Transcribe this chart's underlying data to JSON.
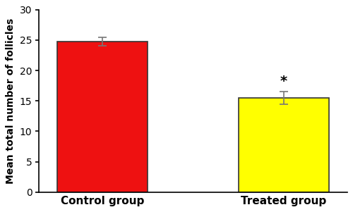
{
  "categories": [
    "Control group",
    "Treated group"
  ],
  "values": [
    24.8,
    15.5
  ],
  "errors": [
    0.7,
    1.1
  ],
  "bar_colors": [
    "#ee1111",
    "#ffff00"
  ],
  "bar_edgecolors": [
    "#333333",
    "#333333"
  ],
  "ylabel": "Mean total number of follicles",
  "ylim": [
    0,
    30
  ],
  "yticks": [
    0,
    5,
    10,
    15,
    20,
    25,
    30
  ],
  "significance_label": "*",
  "significance_index": 1,
  "background_color": "#ffffff",
  "ylabel_fontsize": 10,
  "tick_fontsize": 10,
  "xlabel_fontsize": 11
}
